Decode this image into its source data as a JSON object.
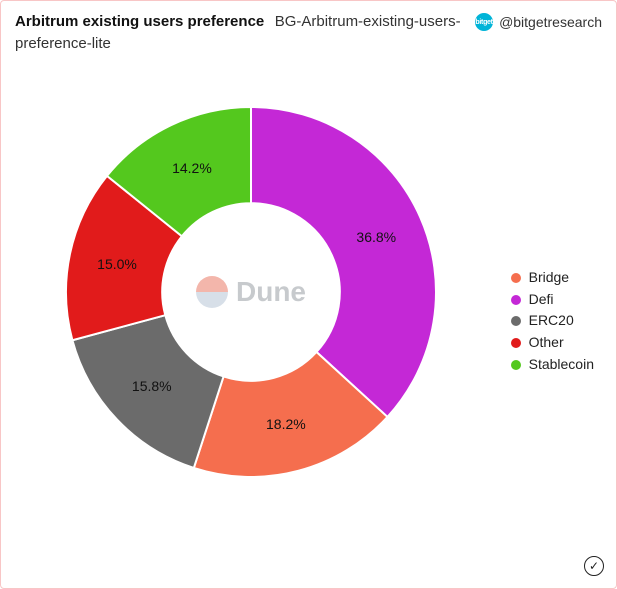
{
  "card": {
    "border_color": "#f8c6c6",
    "background": "#ffffff"
  },
  "header": {
    "title_bold": "Arbitrum existing users preference",
    "title_sub": "BG-Arbitrum-existing-users-preference-lite",
    "attribution_handle": "@bitgetresearch",
    "badge_text": "bitget",
    "badge_bg": "#00b4d8"
  },
  "watermark": {
    "text": "Dune",
    "logo_top_color": "#ea7b67",
    "logo_bottom_color": "#b8c5d6",
    "text_color": "#9aa0a6"
  },
  "chart": {
    "type": "donut",
    "inner_radius_ratio": 0.48,
    "start_angle_deg": 0,
    "direction": "clockwise",
    "label_fontsize": 14,
    "label_color": "#111111",
    "slices": [
      {
        "name": "Defi",
        "value": 36.8,
        "color": "#c428d6",
        "label": "36.8%"
      },
      {
        "name": "Bridge",
        "value": 18.2,
        "color": "#f56e4e",
        "label": "18.2%"
      },
      {
        "name": "ERC20",
        "value": 15.8,
        "color": "#6b6b6b",
        "label": "15.8%"
      },
      {
        "name": "Other",
        "value": 15.0,
        "color": "#e11b1b",
        "label": "15.0%"
      },
      {
        "name": "Stablecoin",
        "value": 14.2,
        "color": "#54c81e",
        "label": "14.2%"
      }
    ]
  },
  "legend": {
    "fontsize": 14,
    "items": [
      {
        "label": "Bridge",
        "color": "#f56e4e"
      },
      {
        "label": "Defi",
        "color": "#c428d6"
      },
      {
        "label": "ERC20",
        "color": "#6b6b6b"
      },
      {
        "label": "Other",
        "color": "#e11b1b"
      },
      {
        "label": "Stablecoin",
        "color": "#54c81e"
      }
    ]
  },
  "footer": {
    "done_glyph": "✓"
  }
}
